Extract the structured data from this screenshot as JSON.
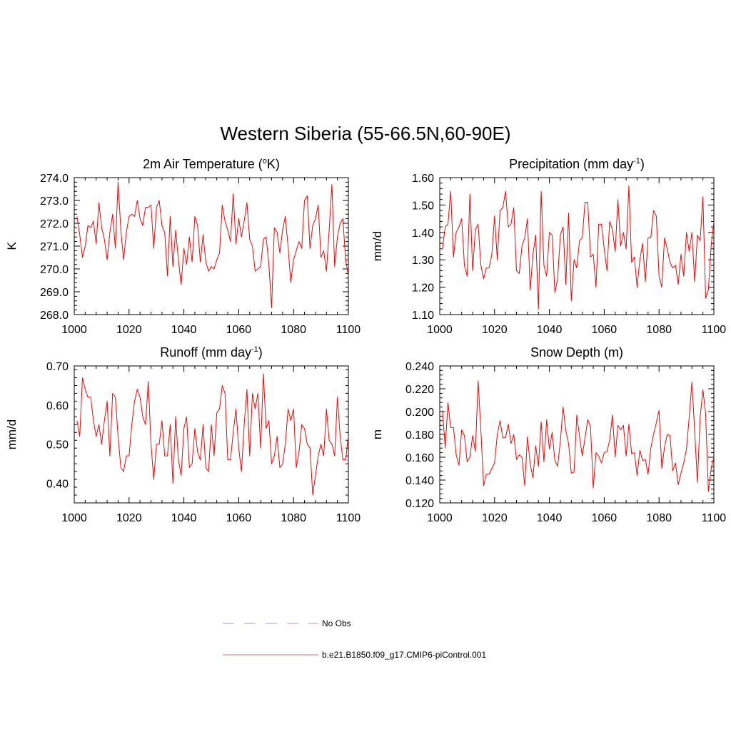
{
  "figure": {
    "title": "Western Siberia (55-66.5N,60-90E)"
  },
  "legend": {
    "items": [
      {
        "label": "No Obs",
        "color": "#9999ff",
        "dash": "dashed"
      },
      {
        "label": "b.e21.B1850.f09_g17.CMIP6-piControl.001",
        "color": "#ff6666",
        "dash": "solid"
      }
    ]
  },
  "series_color": "#ff0000",
  "chart_data": [
    {
      "type": "line",
      "title": "2m Air Temperature (",
      "title_sup": "o",
      "title_suffix": "K)",
      "ylabel": "K",
      "xlim": [
        1000,
        1100
      ],
      "ylim": [
        268.0,
        274.0
      ],
      "xticks": [
        1000,
        1020,
        1040,
        1060,
        1080,
        1100
      ],
      "yticks": [
        "268.0",
        "269.0",
        "270.0",
        "271.0",
        "272.0",
        "273.0",
        "274.0"
      ],
      "x_start": 1001,
      "values": [
        272.3,
        271.5,
        270.5,
        271.0,
        271.9,
        271.8,
        272.1,
        271.1,
        272.9,
        271.8,
        271.3,
        270.4,
        271.6,
        272.4,
        270.9,
        273.8,
        271.7,
        270.4,
        271.6,
        272.3,
        272.4,
        272.3,
        273.0,
        272.2,
        271.9,
        272.7,
        272.7,
        272.8,
        270.9,
        272.7,
        273.0,
        271.9,
        271.6,
        269.7,
        272.3,
        270.1,
        271.7,
        270.4,
        269.3,
        270.9,
        270.2,
        271.4,
        270.3,
        272.3,
        271.9,
        270.3,
        271.5,
        270.3,
        269.9,
        270.1,
        270.0,
        270.4,
        270.7,
        272.8,
        272.1,
        271.7,
        271.2,
        273.3,
        271.1,
        272.2,
        271.4,
        272.1,
        272.9,
        271.3,
        271.0,
        269.9,
        270.0,
        270.1,
        271.3,
        271.4,
        270.2,
        268.3,
        271.8,
        271.6,
        270.7,
        271.7,
        272.3,
        271.0,
        269.4,
        270.4,
        270.8,
        271.2,
        270.9,
        273.0,
        273.2,
        270.9,
        271.9,
        272.2,
        272.8,
        270.5,
        270.8,
        269.9,
        271.7,
        273.7,
        270.1,
        271.4,
        272.0,
        272.2,
        270.4,
        269.7
      ]
    },
    {
      "type": "line",
      "title": "Precipitation (mm day",
      "title_sup": "-1",
      "title_suffix": ")",
      "ylabel": "mm/d",
      "xlim": [
        1000,
        1100
      ],
      "ylim": [
        1.1,
        1.6
      ],
      "xticks": [
        1000,
        1020,
        1040,
        1060,
        1080,
        1100
      ],
      "yticks": [
        "1.10",
        "1.20",
        "1.30",
        "1.40",
        "1.50",
        "1.60"
      ],
      "x_start": 1001,
      "values": [
        1.34,
        1.42,
        1.43,
        1.55,
        1.31,
        1.4,
        1.42,
        1.45,
        1.28,
        1.24,
        1.54,
        1.26,
        1.41,
        1.43,
        1.28,
        1.23,
        1.27,
        1.27,
        1.32,
        1.46,
        1.3,
        1.48,
        1.49,
        1.55,
        1.42,
        1.43,
        1.49,
        1.26,
        1.25,
        1.35,
        1.38,
        1.45,
        1.19,
        1.32,
        1.39,
        1.12,
        1.55,
        1.28,
        1.24,
        1.4,
        1.39,
        1.18,
        1.23,
        1.39,
        1.42,
        1.21,
        1.47,
        1.15,
        1.3,
        1.27,
        1.37,
        1.38,
        1.51,
        1.51,
        1.31,
        1.32,
        1.2,
        1.43,
        1.43,
        1.34,
        1.26,
        1.44,
        1.41,
        1.33,
        1.52,
        1.35,
        1.4,
        1.34,
        1.57,
        1.29,
        1.31,
        1.2,
        1.3,
        1.36,
        1.22,
        1.38,
        1.38,
        1.48,
        1.46,
        1.24,
        1.2,
        1.38,
        1.34,
        1.29,
        1.27,
        1.28,
        1.21,
        1.32,
        1.24,
        1.4,
        1.33,
        1.4,
        1.22,
        1.39,
        1.37,
        1.53,
        1.16,
        1.19,
        1.35,
        1.44
      ]
    },
    {
      "type": "line",
      "title": "Runoff (mm day",
      "title_sup": "-1",
      "title_suffix": ")",
      "ylabel": "mm/d",
      "xlim": [
        1000,
        1100
      ],
      "ylim": [
        0.35,
        0.7
      ],
      "xticks": [
        1000,
        1020,
        1040,
        1060,
        1080,
        1100
      ],
      "yticks": [
        "0.40",
        "0.50",
        "0.60",
        "0.70"
      ],
      "x_start": 1001,
      "values": [
        0.56,
        0.52,
        0.67,
        0.64,
        0.62,
        0.62,
        0.56,
        0.52,
        0.55,
        0.5,
        0.56,
        0.61,
        0.47,
        0.63,
        0.62,
        0.52,
        0.44,
        0.43,
        0.47,
        0.47,
        0.55,
        0.61,
        0.64,
        0.62,
        0.57,
        0.55,
        0.66,
        0.5,
        0.41,
        0.5,
        0.5,
        0.56,
        0.47,
        0.47,
        0.55,
        0.4,
        0.57,
        0.46,
        0.42,
        0.54,
        0.57,
        0.44,
        0.45,
        0.54,
        0.48,
        0.46,
        0.55,
        0.44,
        0.43,
        0.55,
        0.47,
        0.58,
        0.59,
        0.65,
        0.63,
        0.46,
        0.46,
        0.53,
        0.59,
        0.49,
        0.43,
        0.55,
        0.64,
        0.47,
        0.63,
        0.59,
        0.63,
        0.49,
        0.68,
        0.54,
        0.56,
        0.45,
        0.47,
        0.52,
        0.44,
        0.45,
        0.5,
        0.59,
        0.56,
        0.59,
        0.44,
        0.48,
        0.55,
        0.54,
        0.5,
        0.49,
        0.37,
        0.42,
        0.47,
        0.5,
        0.47,
        0.59,
        0.51,
        0.5,
        0.47,
        0.62,
        0.52,
        0.46,
        0.46,
        0.52
      ]
    },
    {
      "type": "line",
      "title": "Snow Depth (m)",
      "title_sup": "",
      "title_suffix": "",
      "ylabel": "m",
      "xlim": [
        1000,
        1100
      ],
      "ylim": [
        0.12,
        0.24
      ],
      "xticks": [
        1000,
        1020,
        1040,
        1060,
        1080,
        1100
      ],
      "yticks": [
        "0.120",
        "0.140",
        "0.160",
        "0.180",
        "0.200",
        "0.220",
        "0.240"
      ],
      "x_start": 1001,
      "values": [
        0.201,
        0.168,
        0.208,
        0.186,
        0.186,
        0.162,
        0.153,
        0.184,
        0.179,
        0.156,
        0.16,
        0.179,
        0.165,
        0.227,
        0.184,
        0.135,
        0.145,
        0.145,
        0.15,
        0.155,
        0.18,
        0.192,
        0.177,
        0.177,
        0.189,
        0.172,
        0.18,
        0.158,
        0.162,
        0.16,
        0.135,
        0.178,
        0.154,
        0.142,
        0.17,
        0.152,
        0.191,
        0.156,
        0.193,
        0.167,
        0.182,
        0.157,
        0.152,
        0.174,
        0.204,
        0.183,
        0.172,
        0.146,
        0.147,
        0.197,
        0.178,
        0.161,
        0.177,
        0.193,
        0.187,
        0.133,
        0.164,
        0.161,
        0.155,
        0.164,
        0.165,
        0.175,
        0.197,
        0.16,
        0.188,
        0.184,
        0.188,
        0.161,
        0.189,
        0.163,
        0.164,
        0.144,
        0.166,
        0.157,
        0.158,
        0.145,
        0.168,
        0.18,
        0.19,
        0.201,
        0.15,
        0.169,
        0.18,
        0.179,
        0.148,
        0.155,
        0.136,
        0.146,
        0.155,
        0.167,
        0.195,
        0.226,
        0.183,
        0.138,
        0.195,
        0.219,
        0.198,
        0.13,
        0.15,
        0.16
      ]
    }
  ]
}
